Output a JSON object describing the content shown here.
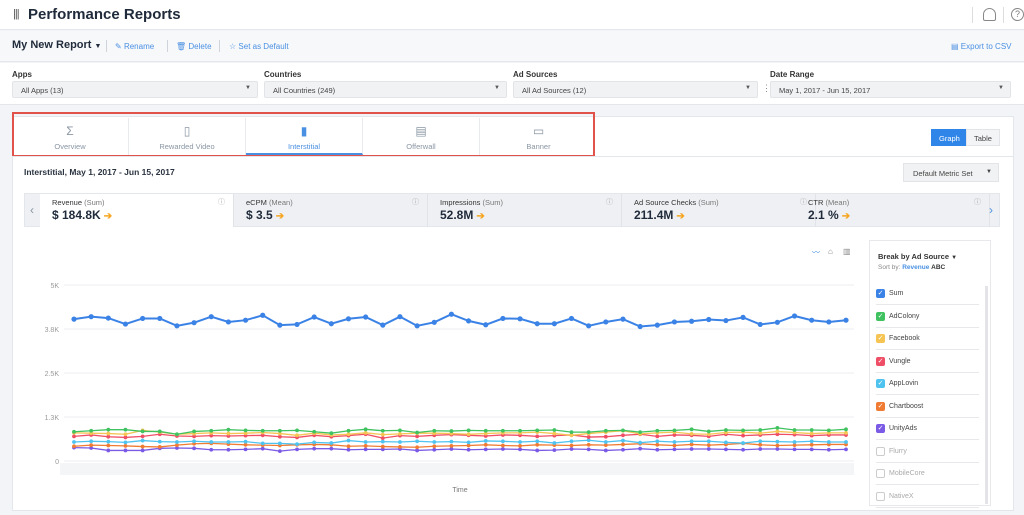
{
  "header": {
    "title": "Performance Reports",
    "menu_icon": "bars-icon",
    "user_icon": "user-icon",
    "help_icon": "help-icon"
  },
  "toolbar": {
    "report_name": "My New Report",
    "rename": "Rename",
    "delete": "Delete",
    "set_default": "Set as Default",
    "export": "Export to CSV"
  },
  "filters": [
    {
      "label": "Apps",
      "value": "All Apps (13)"
    },
    {
      "label": "Countries",
      "value": "All Countries (249)"
    },
    {
      "label": "Ad Sources",
      "value": "All Ad Sources (12)"
    },
    {
      "label": "Date Range",
      "value": "May 1, 2017 - Jun 15, 2017"
    }
  ],
  "tabs": [
    {
      "label": "Overview",
      "icon": "sigma-icon",
      "active": false
    },
    {
      "label": "Rewarded Video",
      "icon": "rewarded-video-icon",
      "active": false
    },
    {
      "label": "Interstitial",
      "icon": "phone-icon",
      "active": true
    },
    {
      "label": "Offerwall",
      "icon": "offerwall-icon",
      "active": false
    },
    {
      "label": "Banner",
      "icon": "banner-icon",
      "active": false
    }
  ],
  "view_toggle": {
    "graph": "Graph",
    "table": "Table",
    "selected": "Graph"
  },
  "report": {
    "title": "Interstitial, May 1, 2017 - Jun 15, 2017",
    "metric_set": "Default Metric Set"
  },
  "metrics": [
    {
      "name": "Revenue",
      "agg": "(Sum)",
      "value": "$ 184.8K"
    },
    {
      "name": "eCPM",
      "agg": "(Mean)",
      "value": "$ 3.5"
    },
    {
      "name": "Impressions",
      "agg": "(Sum)",
      "value": "52.8M"
    },
    {
      "name": "Ad Source Checks",
      "agg": "(Sum)",
      "value": "211.4M"
    },
    {
      "name": "CTR",
      "agg": "(Mean)",
      "value": "2.1 %"
    }
  ],
  "legend": {
    "title": "Break by Ad Source",
    "sort_label": "Sort by:",
    "sort_revenue": "Revenue",
    "sort_abc": "ABC",
    "items": [
      {
        "name": "Sum",
        "checked": true,
        "color": "#3b82e6"
      },
      {
        "name": "AdColony",
        "checked": true,
        "color": "#3fc25f"
      },
      {
        "name": "Facebook",
        "checked": true,
        "color": "#f5c452"
      },
      {
        "name": "Vungle",
        "checked": true,
        "color": "#ef4f66"
      },
      {
        "name": "AppLovin",
        "checked": true,
        "color": "#4fc3f0"
      },
      {
        "name": "Chartboost",
        "checked": true,
        "color": "#f07c33"
      },
      {
        "name": "UnityAds",
        "checked": true,
        "color": "#7b5be6"
      },
      {
        "name": "Flurry",
        "checked": false
      },
      {
        "name": "MobileCore",
        "checked": false
      },
      {
        "name": "NativeX",
        "checked": false
      }
    ]
  },
  "chart_data": {
    "type": "line",
    "xlabel": "Time",
    "x_range": [
      "May 1, 2017",
      "Jun 15, 2017"
    ],
    "ylim": [
      0,
      5000
    ],
    "yticks": [
      "0",
      "1.3K",
      "2.5K",
      "3.8K",
      "5K"
    ],
    "grid": true,
    "series": [
      {
        "name": "Sum",
        "color": "#3b82e6",
        "values": [
          4030,
          4100,
          4060,
          3890,
          4050,
          4050,
          3840,
          3930,
          4100,
          3950,
          4000,
          4140,
          3860,
          3880,
          4090,
          3900,
          4040,
          4090,
          3860,
          4100,
          3840,
          3940,
          4170,
          3980,
          3870,
          4050,
          4040,
          3900,
          3900,
          4050,
          3840,
          3950,
          4030,
          3820,
          3860,
          3950,
          3970,
          4020,
          3990,
          4080,
          3880,
          3940,
          4120,
          4000,
          3950,
          4000
        ]
      },
      {
        "name": "AdColony",
        "color": "#3fc25f",
        "values": [
          830,
          860,
          890,
          890,
          840,
          840,
          760,
          840,
          860,
          890,
          870,
          860,
          860,
          870,
          830,
          790,
          860,
          900,
          860,
          870,
          810,
          860,
          850,
          870,
          860,
          860,
          860,
          870,
          880,
          820,
          820,
          860,
          870,
          820,
          860,
          870,
          900,
          840,
          880,
          870,
          880,
          940,
          880,
          880,
          870,
          900
        ]
      },
      {
        "name": "Facebook",
        "color": "#f5c452",
        "values": [
          800,
          790,
          780,
          760,
          870,
          820,
          760,
          780,
          800,
          780,
          790,
          810,
          780,
          730,
          790,
          740,
          760,
          800,
          750,
          770,
          790,
          790,
          780,
          760,
          780,
          800,
          800,
          820,
          780,
          730,
          780,
          820,
          860,
          770,
          800,
          820,
          770,
          760,
          810,
          820,
          790,
          840,
          810,
          780,
          800,
          800
        ]
      },
      {
        "name": "Vungle",
        "color": "#ef4f66",
        "values": [
          700,
          740,
          690,
          670,
          700,
          760,
          710,
          700,
          720,
          710,
          720,
          730,
          690,
          670,
          730,
          690,
          720,
          760,
          650,
          720,
          700,
          730,
          750,
          730,
          710,
          740,
          730,
          700,
          720,
          740,
          680,
          690,
          730,
          760,
          700,
          740,
          730,
          700,
          760,
          720,
          740,
          760,
          750,
          720,
          740,
          740
        ]
      },
      {
        "name": "AppLovin",
        "color": "#4fc3f0",
        "values": [
          540,
          560,
          550,
          530,
          580,
          550,
          540,
          560,
          540,
          540,
          550,
          500,
          500,
          480,
          530,
          510,
          580,
          540,
          550,
          540,
          560,
          540,
          550,
          530,
          570,
          560,
          540,
          560,
          510,
          560,
          590,
          540,
          580,
          520,
          560,
          540,
          560,
          560,
          530,
          510,
          560,
          550,
          540,
          560,
          540,
          540
        ]
      },
      {
        "name": "Chartboost",
        "color": "#f07c33",
        "values": [
          420,
          450,
          440,
          430,
          410,
          400,
          450,
          490,
          500,
          480,
          460,
          450,
          440,
          460,
          470,
          460,
          420,
          430,
          410,
          400,
          390,
          420,
          430,
          440,
          460,
          440,
          430,
          460,
          450,
          440,
          460,
          450,
          470,
          490,
          460,
          440,
          470,
          450,
          470,
          500,
          460,
          440,
          450,
          460,
          470,
          470
        ]
      },
      {
        "name": "UnityAds",
        "color": "#7b5be6",
        "values": [
          380,
          370,
          300,
          300,
          300,
          360,
          370,
          360,
          320,
          320,
          330,
          350,
          280,
          330,
          350,
          350,
          320,
          330,
          330,
          340,
          300,
          320,
          340,
          320,
          330,
          340,
          330,
          300,
          310,
          340,
          330,
          300,
          320,
          350,
          320,
          330,
          340,
          340,
          330,
          320,
          340,
          340,
          330,
          330,
          320,
          330
        ]
      }
    ]
  }
}
